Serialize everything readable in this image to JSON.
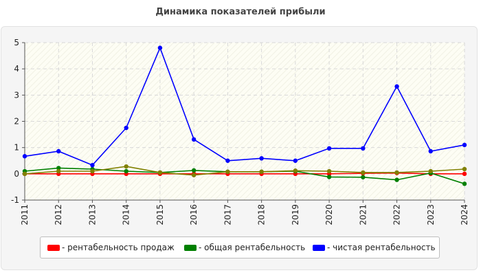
{
  "chart_data": {
    "type": "line",
    "title": "Динамика показателей прибыли",
    "xlabel": "",
    "ylabel": "",
    "x": [
      "2011",
      "2012",
      "2013",
      "2014",
      "2015",
      "2016",
      "2017",
      "2018",
      "2019",
      "2020",
      "2021",
      "2022",
      "2023",
      "2024"
    ],
    "ylim": [
      -1,
      5
    ],
    "yticks": [
      -1,
      0,
      1,
      2,
      3,
      4,
      5
    ],
    "grid": true,
    "legend_position": "bottom",
    "series": [
      {
        "name": "- рентабельность продаж",
        "color": "#ff0000",
        "values": [
          0.0,
          0.0,
          0.0,
          0.0,
          0.0,
          0.0,
          0.0,
          0.0,
          0.0,
          0.0,
          0.02,
          0.03,
          0.0,
          0.0
        ]
      },
      {
        "name": "- общая рентабельность",
        "color": "#008000",
        "values": [
          0.1,
          0.22,
          0.18,
          0.1,
          0.05,
          0.13,
          0.08,
          0.08,
          0.1,
          -0.12,
          -0.13,
          -0.23,
          0.03,
          -0.38
        ]
      },
      {
        "name": "- чистая рентабельность",
        "color": "#0000ff",
        "values": [
          0.67,
          0.86,
          0.33,
          1.75,
          4.8,
          1.31,
          0.5,
          0.59,
          0.5,
          0.97,
          0.97,
          3.33,
          0.86,
          1.1
        ]
      },
      {
        "name": "",
        "color": "#808000",
        "values": [
          0.0,
          0.1,
          0.1,
          0.28,
          0.05,
          -0.05,
          0.08,
          0.08,
          0.12,
          0.1,
          0.05,
          0.05,
          0.1,
          0.18
        ]
      }
    ]
  }
}
